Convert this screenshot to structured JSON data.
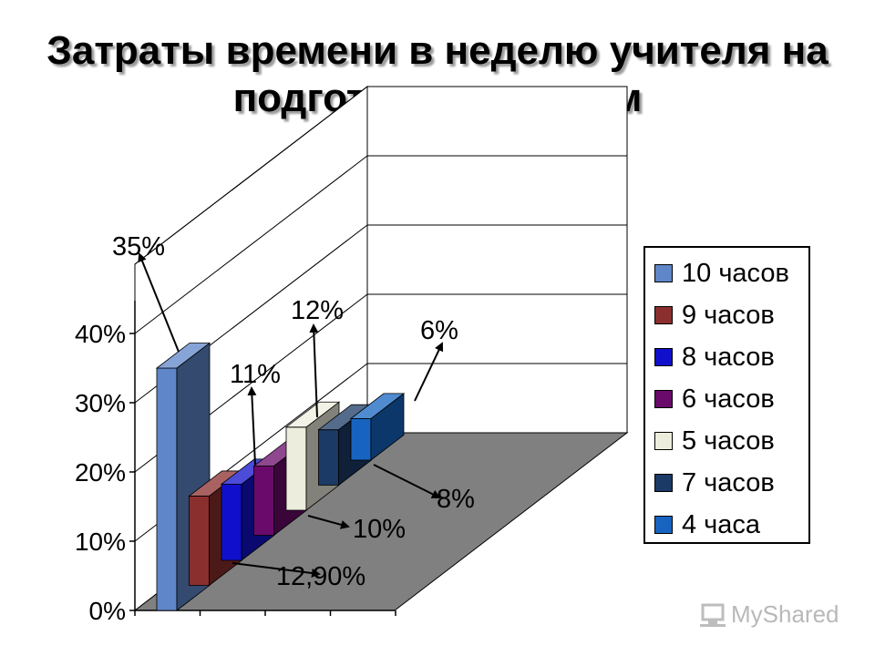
{
  "chart_data": {
    "type": "bar",
    "title": "Затраты времени в неделю учителя на подготовку к урокам",
    "ylim": [
      0,
      50
    ],
    "yticks": [
      "0%",
      "10%",
      "20%",
      "30%",
      "40%"
    ],
    "grid": true,
    "legend_position": "right",
    "series": [
      {
        "name": "10 часов",
        "value": 35,
        "label": "35%",
        "color": "#5f86c8"
      },
      {
        "name": "9 часов",
        "value": 12.9,
        "label": "12,90%",
        "color": "#8b2e2e"
      },
      {
        "name": "8 часов",
        "value": 11,
        "label": "11%",
        "color": "#1010cc"
      },
      {
        "name": "6 часов",
        "value": 10,
        "label": "10%",
        "color": "#6a0a6a"
      },
      {
        "name": "5 часов",
        "value": 12,
        "label": "12%",
        "color": "#ededdd"
      },
      {
        "name": "7 часов",
        "value": 8,
        "label": "8%",
        "color": "#1c3a66"
      },
      {
        "name": "4 часа",
        "value": 6,
        "label": "6%",
        "color": "#1664c0"
      }
    ]
  },
  "watermark": {
    "text": "MyShared"
  }
}
